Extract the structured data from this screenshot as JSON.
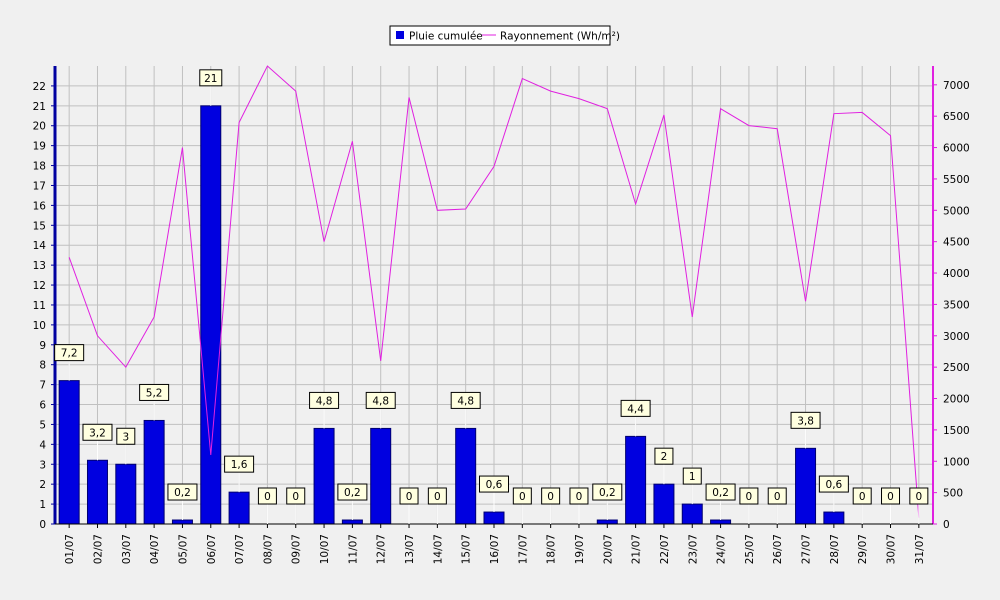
{
  "chart_data": {
    "type": "bar",
    "categories": [
      "01/07",
      "02/07",
      "03/07",
      "04/07",
      "05/07",
      "06/07",
      "07/07",
      "08/07",
      "09/07",
      "10/07",
      "11/07",
      "12/07",
      "13/07",
      "14/07",
      "15/07",
      "16/07",
      "17/07",
      "18/07",
      "19/07",
      "20/07",
      "21/07",
      "22/07",
      "23/07",
      "24/07",
      "25/07",
      "26/07",
      "27/07",
      "28/07",
      "29/07",
      "30/07",
      "31/07"
    ],
    "series": [
      {
        "name": "Pluie cumulée",
        "type": "bar",
        "axis": "left",
        "color": "#0000e0",
        "values": [
          7.2,
          3.2,
          3,
          5.2,
          0.2,
          21,
          1.6,
          0,
          0,
          4.8,
          0.2,
          4.8,
          0,
          0,
          4.8,
          0.6,
          0,
          0,
          0,
          0.2,
          4.4,
          2,
          1,
          0.2,
          0,
          0,
          3.8,
          0.6,
          0,
          0,
          0
        ],
        "labels": [
          "7,2",
          "3,2",
          "3",
          "5,2",
          "0,2",
          "21",
          "1,6",
          "0",
          "0",
          "4,8",
          "0,2",
          "4,8",
          "0",
          "0",
          "4,8",
          "0,6",
          "0",
          "0",
          "0",
          "0,2",
          "4,4",
          "2",
          "1",
          "0,2",
          "0",
          "0",
          "3,8",
          "0,6",
          "0",
          "0",
          "0"
        ]
      },
      {
        "name": "Rayonnement (Wh/m²)",
        "type": "line",
        "axis": "right",
        "color": "#e020e0",
        "values": [
          4250,
          3000,
          2500,
          3300,
          6000,
          1100,
          6400,
          7300,
          6900,
          4500,
          6100,
          2600,
          6800,
          5000,
          5020,
          5700,
          7100,
          6900,
          6780,
          6620,
          5100,
          6520,
          3300,
          6620,
          6350,
          6300,
          3550,
          6540,
          6560,
          6190,
          100
        ]
      }
    ],
    "y_left": {
      "min": 0,
      "max": 23,
      "ticks": [
        "0",
        "1",
        "2",
        "3",
        "4",
        "5",
        "6",
        "7",
        "8",
        "9",
        "10",
        "11",
        "12",
        "13",
        "14",
        "15",
        "16",
        "17",
        "18",
        "19",
        "20",
        "21",
        "22"
      ]
    },
    "y_right": {
      "min": 0,
      "max": 7300,
      "ticks": [
        "0",
        "500",
        "1000",
        "1500",
        "2000",
        "2500",
        "3000",
        "3500",
        "4000",
        "4500",
        "5000",
        "5500",
        "6000",
        "6500",
        "7000"
      ]
    },
    "grid": true,
    "legend_position": "top-center"
  }
}
